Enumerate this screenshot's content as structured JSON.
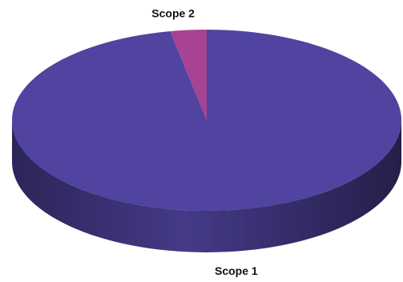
{
  "chart_data": {
    "type": "pie3d",
    "categories": [
      "Scope 1",
      "Scope 2"
    ],
    "values": [
      97,
      3
    ],
    "colors": [
      "#5044a0",
      "#a84393"
    ]
  }
}
